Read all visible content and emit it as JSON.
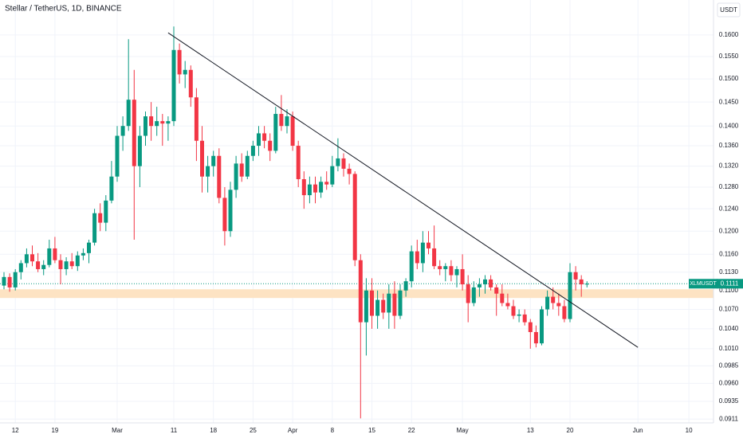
{
  "chart_data": {
    "type": "candlestick",
    "title": "Stellar / TetherUS, 1D, BINANCE",
    "currency": "USDT",
    "symbol": "XLMUSDT",
    "last_price": {
      "value": 0.1111,
      "label": "0.1111"
    },
    "up_color": "#089981",
    "down_color": "#f23645",
    "log_scale": true,
    "grid": true,
    "categories": [
      "Feb 10",
      "Feb 11",
      "Feb 12",
      "Feb 13",
      "Feb 14",
      "Feb 15",
      "Feb 16",
      "Feb 17",
      "Feb 18",
      "Feb 19",
      "Feb 20",
      "Feb 21",
      "Feb 22",
      "Feb 23",
      "Feb 24",
      "Feb 25",
      "Feb 26",
      "Feb 27",
      "Feb 28",
      "Feb 29",
      "Mar 1",
      "Mar 2",
      "Mar 3",
      "Mar 4",
      "Mar 5",
      "Mar 6",
      "Mar 7",
      "Mar 8",
      "Mar 9",
      "Mar 10",
      "Mar 11",
      "Mar 12",
      "Mar 13",
      "Mar 14",
      "Mar 15",
      "Mar 16",
      "Mar 17",
      "Mar 18",
      "Mar 19",
      "Mar 20",
      "Mar 21",
      "Mar 22",
      "Mar 23",
      "Mar 24",
      "Mar 25",
      "Mar 26",
      "Mar 27",
      "Mar 28",
      "Mar 29",
      "Mar 30",
      "Mar 31",
      "Apr 1",
      "Apr 2",
      "Apr 3",
      "Apr 4",
      "Apr 5",
      "Apr 6",
      "Apr 7",
      "Apr 8",
      "Apr 9",
      "Apr 10",
      "Apr 11",
      "Apr 12",
      "Apr 13",
      "Apr 14",
      "Apr 15",
      "Apr 16",
      "Apr 17",
      "Apr 18",
      "Apr 19",
      "Apr 20",
      "Apr 21",
      "Apr 22",
      "Apr 23",
      "Apr 24",
      "Apr 25",
      "Apr 26",
      "Apr 27",
      "Apr 28",
      "Apr 29",
      "Apr 30",
      "May 1",
      "May 2",
      "May 3",
      "May 4",
      "May 5",
      "May 6",
      "May 7",
      "May 8",
      "May 9",
      "May 10",
      "May 11",
      "May 12",
      "May 13",
      "May 14",
      "May 15",
      "May 16",
      "May 17",
      "May 18",
      "May 19",
      "May 20",
      "May 21",
      "May 22",
      "May 23"
    ],
    "open": [
      0.1108,
      0.1122,
      0.1105,
      0.113,
      0.1145,
      0.116,
      0.1148,
      0.1135,
      0.1142,
      0.117,
      0.115,
      0.1135,
      0.1148,
      0.114,
      0.1158,
      0.1162,
      0.118,
      0.1232,
      0.1215,
      0.1255,
      0.13,
      0.138,
      0.14,
      0.1455,
      0.132,
      0.138,
      0.142,
      0.14,
      0.141,
      0.1405,
      0.141,
      0.1565,
      0.151,
      0.152,
      0.146,
      0.137,
      0.13,
      0.132,
      0.134,
      0.126,
      0.12,
      0.1275,
      0.1325,
      0.13,
      0.134,
      0.136,
      0.1385,
      0.137,
      0.135,
      0.1425,
      0.14,
      0.142,
      0.136,
      0.1295,
      0.1265,
      0.1285,
      0.127,
      0.129,
      0.1285,
      0.132,
      0.1335,
      0.1315,
      0.1305,
      0.115,
      0.105,
      0.11,
      0.106,
      0.1085,
      0.1065,
      0.1095,
      0.106,
      0.11,
      0.1115,
      0.1165,
      0.1145,
      0.118,
      0.117,
      0.114,
      0.1135,
      0.114,
      0.1125,
      0.1135,
      0.111,
      0.108,
      0.1105,
      0.111,
      0.1118,
      0.1105,
      0.1095,
      0.108,
      0.1075,
      0.106,
      0.1062,
      0.105,
      0.1035,
      0.1018,
      0.107,
      0.109,
      0.108,
      0.1075,
      0.1055,
      0.113,
      0.1118,
      0.111
    ],
    "high": [
      0.113,
      0.1128,
      0.1135,
      0.115,
      0.117,
      0.1175,
      0.1162,
      0.115,
      0.1185,
      0.119,
      0.116,
      0.1155,
      0.1162,
      0.1165,
      0.117,
      0.1185,
      0.124,
      0.125,
      0.1265,
      0.133,
      0.14,
      0.142,
      0.159,
      0.152,
      0.14,
      0.143,
      0.145,
      0.144,
      0.1425,
      0.142,
      0.162,
      0.158,
      0.154,
      0.153,
      0.148,
      0.14,
      0.134,
      0.135,
      0.1355,
      0.128,
      0.129,
      0.134,
      0.1345,
      0.135,
      0.137,
      0.14,
      0.14,
      0.1385,
      0.144,
      0.1465,
      0.1435,
      0.143,
      0.137,
      0.131,
      0.13,
      0.13,
      0.13,
      0.131,
      0.134,
      0.1375,
      0.1345,
      0.1325,
      0.131,
      0.116,
      0.112,
      0.112,
      0.11,
      0.1095,
      0.111,
      0.1115,
      0.111,
      0.112,
      0.1175,
      0.1185,
      0.12,
      0.12,
      0.121,
      0.115,
      0.1145,
      0.115,
      0.114,
      0.116,
      0.1125,
      0.1115,
      0.112,
      0.1125,
      0.1125,
      0.111,
      0.111,
      0.1095,
      0.1085,
      0.107,
      0.107,
      0.1055,
      0.1045,
      0.1075,
      0.11,
      0.1105,
      0.1095,
      0.1085,
      0.1145,
      0.114,
      0.1125,
      0.1115
    ],
    "low": [
      0.1102,
      0.1098,
      0.11,
      0.1118,
      0.1138,
      0.114,
      0.113,
      0.1125,
      0.1138,
      0.1145,
      0.111,
      0.1125,
      0.1135,
      0.1132,
      0.115,
      0.1145,
      0.1175,
      0.12,
      0.12,
      0.125,
      0.129,
      0.135,
      0.139,
      0.1185,
      0.128,
      0.136,
      0.137,
      0.138,
      0.136,
      0.137,
      0.14,
      0.149,
      0.148,
      0.144,
      0.133,
      0.127,
      0.127,
      0.13,
      0.125,
      0.1175,
      0.119,
      0.126,
      0.129,
      0.1295,
      0.133,
      0.134,
      0.1355,
      0.133,
      0.1345,
      0.139,
      0.1385,
      0.135,
      0.128,
      0.124,
      0.125,
      0.125,
      0.126,
      0.1275,
      0.128,
      0.131,
      0.13,
      0.1285,
      0.114,
      0.0912,
      0.1,
      0.104,
      0.104,
      0.1055,
      0.104,
      0.104,
      0.1055,
      0.109,
      0.1105,
      0.1135,
      0.113,
      0.116,
      0.1135,
      0.1125,
      0.1115,
      0.1115,
      0.1105,
      0.11,
      0.105,
      0.1075,
      0.109,
      0.1095,
      0.11,
      0.106,
      0.1075,
      0.107,
      0.1055,
      0.105,
      0.1045,
      0.101,
      0.1012,
      0.1015,
      0.106,
      0.107,
      0.106,
      0.105,
      0.105,
      0.11,
      0.109,
      0.1105
    ],
    "close": [
      0.1122,
      0.1105,
      0.113,
      0.1145,
      0.116,
      0.1148,
      0.1135,
      0.1142,
      0.117,
      0.115,
      0.1135,
      0.1148,
      0.114,
      0.1158,
      0.1162,
      0.118,
      0.1232,
      0.1215,
      0.1255,
      0.13,
      0.138,
      0.14,
      0.1455,
      0.132,
      0.138,
      0.142,
      0.14,
      0.141,
      0.1405,
      0.141,
      0.1565,
      0.151,
      0.152,
      0.146,
      0.137,
      0.13,
      0.132,
      0.134,
      0.126,
      0.12,
      0.1275,
      0.1325,
      0.13,
      0.134,
      0.136,
      0.1385,
      0.137,
      0.135,
      0.1425,
      0.14,
      0.142,
      0.136,
      0.1295,
      0.1265,
      0.1285,
      0.127,
      0.129,
      0.1285,
      0.132,
      0.1335,
      0.1315,
      0.1305,
      0.115,
      0.105,
      0.11,
      0.106,
      0.1085,
      0.1065,
      0.1095,
      0.106,
      0.11,
      0.1115,
      0.1165,
      0.1145,
      0.118,
      0.117,
      0.114,
      0.1135,
      0.114,
      0.1125,
      0.1135,
      0.111,
      0.108,
      0.1105,
      0.111,
      0.1118,
      0.1105,
      0.1095,
      0.108,
      0.1075,
      0.106,
      0.1062,
      0.105,
      0.1035,
      0.1018,
      0.107,
      0.109,
      0.108,
      0.1075,
      0.1055,
      0.113,
      0.1118,
      0.111,
      0.1111
    ],
    "ylim": [
      0.0906,
      0.1684
    ],
    "yticks": [
      {
        "value": 0.16,
        "label": "0.1600"
      },
      {
        "value": 0.155,
        "label": "0.1550"
      },
      {
        "value": 0.15,
        "label": "0.1500"
      },
      {
        "value": 0.145,
        "label": "0.1450"
      },
      {
        "value": 0.14,
        "label": "0.1400"
      },
      {
        "value": 0.136,
        "label": "0.1360"
      },
      {
        "value": 0.132,
        "label": "0.1320"
      },
      {
        "value": 0.128,
        "label": "0.1280"
      },
      {
        "value": 0.124,
        "label": "0.1240"
      },
      {
        "value": 0.12,
        "label": "0.1200"
      },
      {
        "value": 0.116,
        "label": "0.1160"
      },
      {
        "value": 0.113,
        "label": "0.1130"
      },
      {
        "value": 0.11,
        "label": "0.1100"
      },
      {
        "value": 0.107,
        "label": "0.1070"
      },
      {
        "value": 0.104,
        "label": "0.1040"
      },
      {
        "value": 0.101,
        "label": "0.1010"
      },
      {
        "value": 0.0985,
        "label": "0.0985"
      },
      {
        "value": 0.096,
        "label": "0.0960"
      },
      {
        "value": 0.0935,
        "label": "0.0935"
      },
      {
        "value": 0.0911,
        "label": "0.0911"
      }
    ],
    "xticks": [
      {
        "value": "Feb 12",
        "label": "12"
      },
      {
        "value": "Feb 19",
        "label": "19"
      },
      {
        "value": "Mar 1",
        "label": "Mar"
      },
      {
        "value": "Mar 11",
        "label": "11"
      },
      {
        "value": "Mar 18",
        "label": "18"
      },
      {
        "value": "Mar 25",
        "label": "25"
      },
      {
        "value": "Apr 1",
        "label": "Apr"
      },
      {
        "value": "Apr 8",
        "label": "8"
      },
      {
        "value": "Apr 15",
        "label": "15"
      },
      {
        "value": "Apr 22",
        "label": "22"
      },
      {
        "value": "May 1",
        "label": "May"
      },
      {
        "value": "May 13",
        "label": "13"
      },
      {
        "value": "May 20",
        "label": "20"
      },
      {
        "value": "Jun 1",
        "label": "Jun"
      },
      {
        "value": "Jun 10",
        "label": "10"
      }
    ],
    "trendline": {
      "x": [
        "Mar 10",
        "Jun 1"
      ],
      "y": [
        0.1605,
        0.1012
      ],
      "color": "#131722"
    },
    "zone": {
      "range": [
        0.1088,
        0.1102
      ],
      "color": "#fde3c3"
    }
  }
}
